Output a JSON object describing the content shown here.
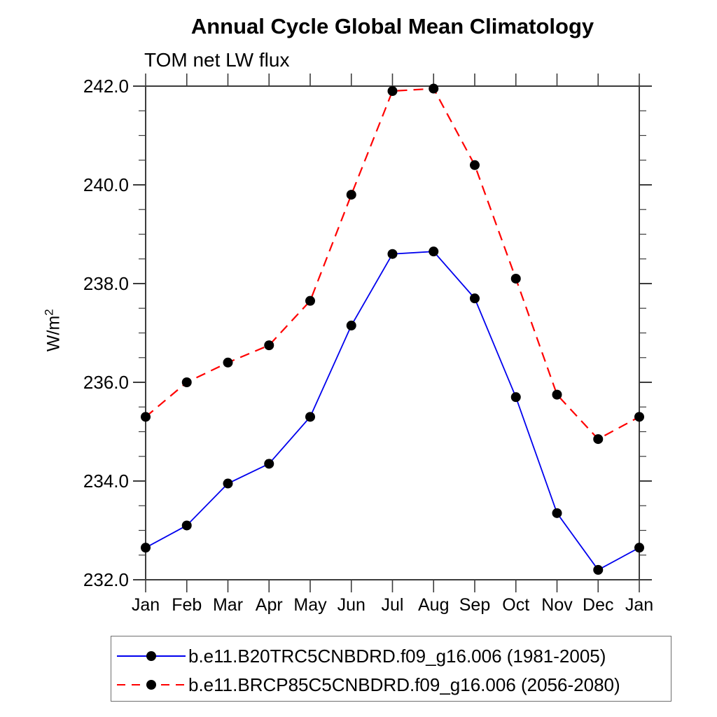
{
  "header": {
    "title": "Annual Cycle Global Mean Climatology",
    "subtitle": "TOM net LW flux"
  },
  "axis": {
    "ylabel_base": "W/m",
    "ylabel_exp": "2"
  },
  "chart_data": {
    "type": "line",
    "title": "Annual Cycle Global Mean Climatology",
    "subtitle": "TOM net LW flux",
    "xlabel": "",
    "ylabel": "W/m²",
    "categories": [
      "Jan",
      "Feb",
      "Mar",
      "Apr",
      "May",
      "Jun",
      "Jul",
      "Aug",
      "Sep",
      "Oct",
      "Nov",
      "Dec",
      "Jan"
    ],
    "ylim": [
      232.0,
      242.0
    ],
    "ytick_major": [
      232.0,
      234.0,
      236.0,
      238.0,
      240.0,
      242.0
    ],
    "ytick_major_labels": [
      "232.0",
      "234.0",
      "236.0",
      "238.0",
      "240.0",
      "242.0"
    ],
    "ytick_minor_step": 0.5,
    "grid": false,
    "legend_position": "bottom",
    "frame_color": "#3c3c3c",
    "marker_color": "#000000",
    "series": [
      {
        "name": "b.e11.B20TRC5CNBDRD.f09_g16.006 (1981-2005)",
        "color": "#0000ee",
        "line_style": "solid",
        "marker": "filled-circle",
        "values": [
          232.65,
          233.1,
          233.95,
          234.35,
          235.3,
          237.15,
          238.6,
          238.65,
          237.7,
          235.7,
          233.35,
          232.2,
          232.65
        ]
      },
      {
        "name": "b.e11.BRCP85C5CNBDRD.f09_g16.006 (2056-2080)",
        "color": "#ff0000",
        "line_style": "dashed",
        "marker": "filled-circle",
        "values": [
          235.3,
          236.0,
          236.4,
          236.75,
          237.65,
          239.8,
          241.9,
          241.95,
          240.4,
          238.1,
          235.75,
          234.85,
          235.3
        ]
      }
    ]
  }
}
